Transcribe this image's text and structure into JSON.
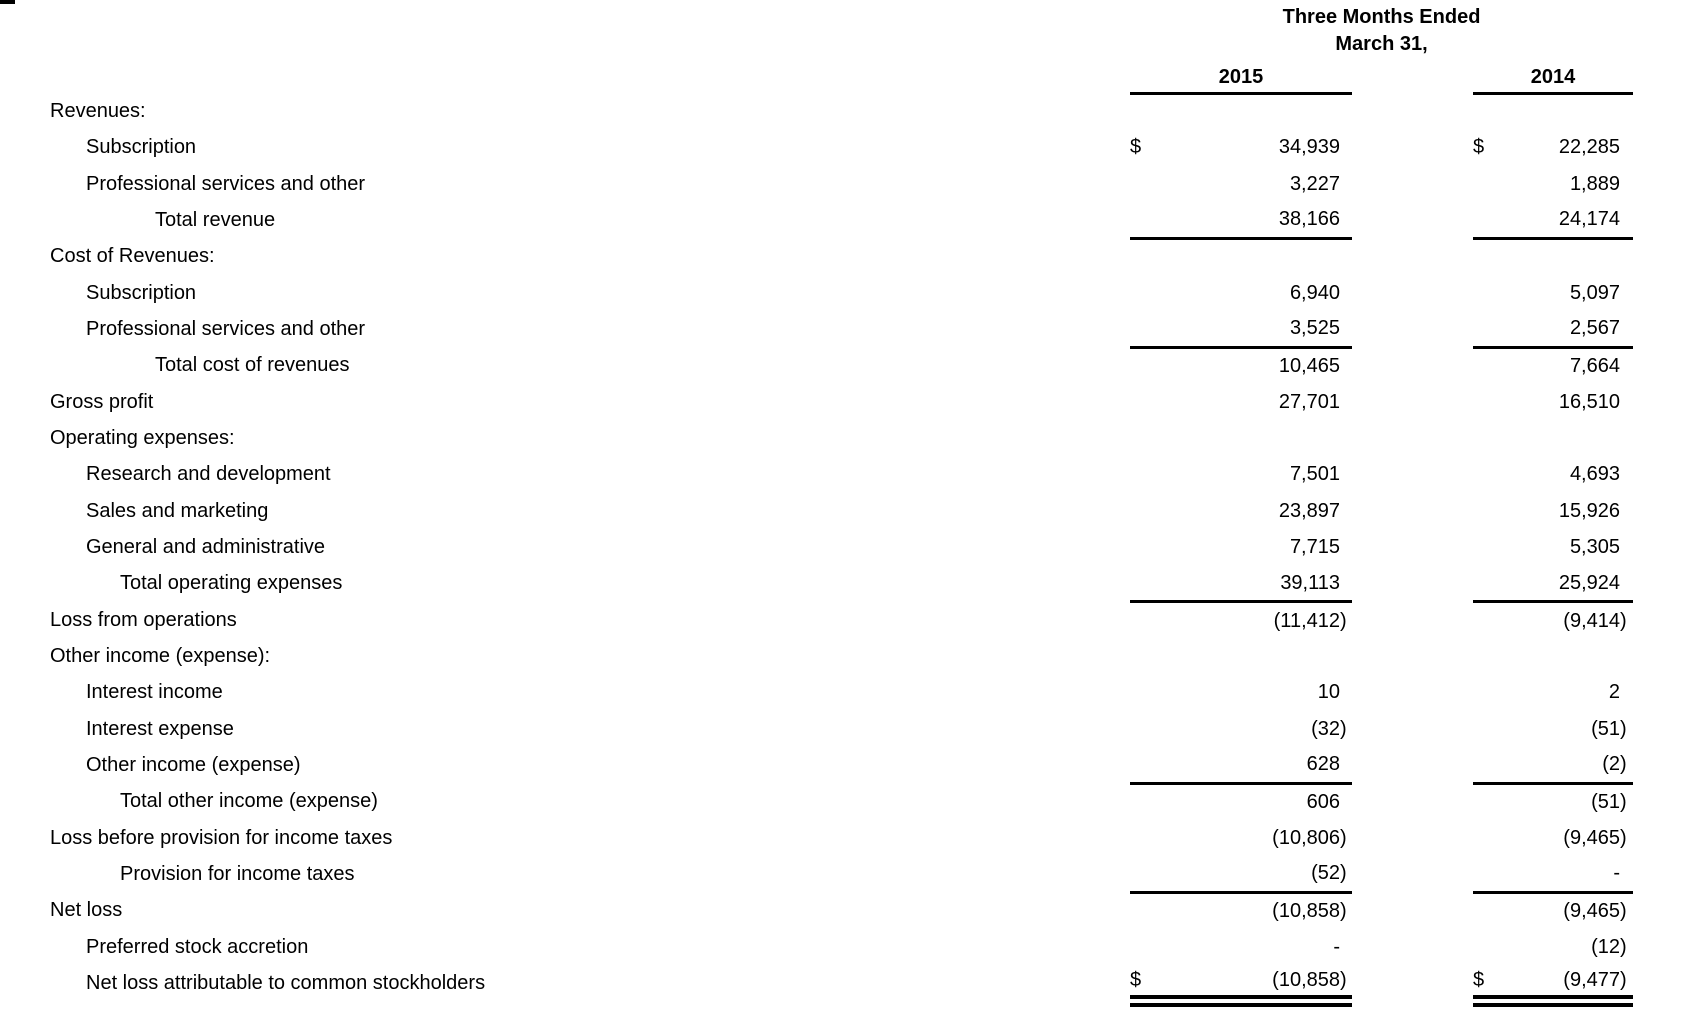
{
  "page": {
    "background_color": "#ffffff",
    "text_color": "#000000",
    "corner_scan_mark": true
  },
  "statement": {
    "period_header": {
      "line1": "Three Months Ended",
      "line2": "March 31,"
    },
    "column_years": [
      "2015",
      "2014"
    ],
    "currency_symbol": "$",
    "rows": [
      {
        "label": "Revenues:",
        "indent": 0,
        "dollar": false,
        "v2015": "",
        "v2014": "",
        "rule": ""
      },
      {
        "label": "Subscription",
        "indent": 1,
        "dollar": true,
        "v2015": "34,939",
        "v2014": "22,285",
        "rule": ""
      },
      {
        "label": "Professional services and other",
        "indent": 1,
        "dollar": false,
        "v2015": "3,227",
        "v2014": "1,889",
        "rule": ""
      },
      {
        "label": "Total revenue",
        "indent": 3,
        "dollar": false,
        "v2015": "38,166",
        "v2014": "24,174",
        "rule": "single"
      },
      {
        "label": "Cost of Revenues:",
        "indent": 0,
        "dollar": false,
        "v2015": "",
        "v2014": "",
        "rule": ""
      },
      {
        "label": "Subscription",
        "indent": 1,
        "dollar": false,
        "v2015": "6,940",
        "v2014": "5,097",
        "rule": ""
      },
      {
        "label": "Professional services and other",
        "indent": 1,
        "dollar": false,
        "v2015": "3,525",
        "v2014": "2,567",
        "rule": "single"
      },
      {
        "label": "Total cost of revenues",
        "indent": 3,
        "dollar": false,
        "v2015": "10,465",
        "v2014": "7,664",
        "rule": ""
      },
      {
        "label": "Gross profit",
        "indent": 0,
        "dollar": false,
        "v2015": "27,701",
        "v2014": "16,510",
        "rule": ""
      },
      {
        "label": "Operating expenses:",
        "indent": 0,
        "dollar": false,
        "v2015": "",
        "v2014": "",
        "rule": ""
      },
      {
        "label": "Research and development",
        "indent": 1,
        "dollar": false,
        "v2015": "7,501",
        "v2014": "4,693",
        "rule": ""
      },
      {
        "label": "Sales and marketing",
        "indent": 1,
        "dollar": false,
        "v2015": "23,897",
        "v2014": "15,926",
        "rule": ""
      },
      {
        "label": "General and administrative",
        "indent": 1,
        "dollar": false,
        "v2015": "7,715",
        "v2014": "5,305",
        "rule": ""
      },
      {
        "label": "Total operating expenses",
        "indent": 2,
        "dollar": false,
        "v2015": "39,113",
        "v2014": "25,924",
        "rule": "single"
      },
      {
        "label": "Loss from operations",
        "indent": 0,
        "dollar": false,
        "v2015": "(11,412)",
        "v2014": "(9,414)",
        "rule": ""
      },
      {
        "label": "Other income (expense):",
        "indent": 0,
        "dollar": false,
        "v2015": "",
        "v2014": "",
        "rule": ""
      },
      {
        "label": "Interest income",
        "indent": 1,
        "dollar": false,
        "v2015": "10",
        "v2014": "2",
        "rule": ""
      },
      {
        "label": "Interest expense",
        "indent": 1,
        "dollar": false,
        "v2015": "(32)",
        "v2014": "(51)",
        "rule": ""
      },
      {
        "label": "Other income (expense)",
        "indent": 1,
        "dollar": false,
        "v2015": "628",
        "v2014": "(2)",
        "rule": "single"
      },
      {
        "label": "Total other income (expense)",
        "indent": 2,
        "dollar": false,
        "v2015": "606",
        "v2014": "(51)",
        "rule": ""
      },
      {
        "label": "Loss before provision for income taxes",
        "indent": 0,
        "dollar": false,
        "v2015": "(10,806)",
        "v2014": "(9,465)",
        "rule": ""
      },
      {
        "label": "Provision for income taxes",
        "indent": 2,
        "dollar": false,
        "v2015": "(52)",
        "v2014": "-",
        "rule": "single"
      },
      {
        "label": "Net loss",
        "indent": 0,
        "dollar": false,
        "v2015": "(10,858)",
        "v2014": "(9,465)",
        "rule": ""
      },
      {
        "label": "Preferred stock accretion",
        "indent": 1,
        "dollar": false,
        "v2015": "-",
        "v2014": "(12)",
        "rule": ""
      },
      {
        "label": "Net loss attributable to common stockholders",
        "indent": 1,
        "dollar": true,
        "v2015": "(10,858)",
        "v2014": "(9,477)",
        "rule": "double"
      }
    ]
  }
}
